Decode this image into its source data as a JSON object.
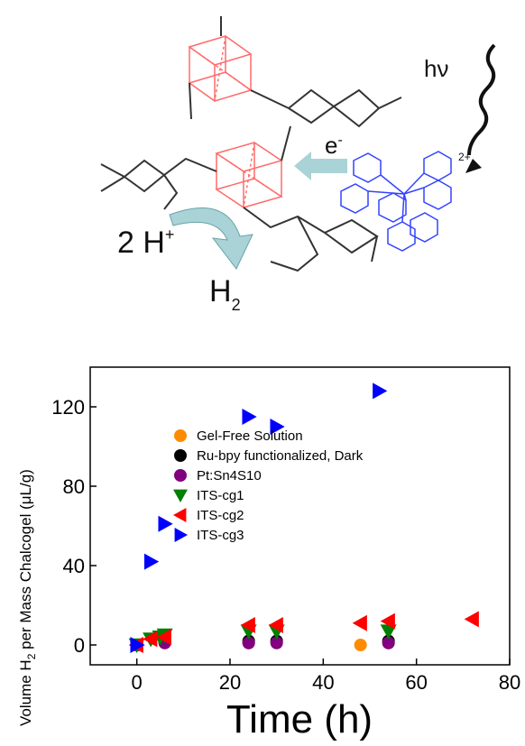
{
  "scheme": {
    "label_hv": "hν",
    "label_electron": "e",
    "label_electron_sup": "-",
    "label_protons": "2 H",
    "label_protons_sup": "+",
    "label_h2": "H",
    "label_h2_sub": "2",
    "label_charge": "2+",
    "colors": {
      "cluster": "#ff6b6b",
      "linker": "#333333",
      "ru": "#3344ff",
      "arrow": "#a9d3d6"
    }
  },
  "chart_data": {
    "type": "scatter",
    "xlabel": "Time (h)",
    "ylabel": "Volume H₂ per Mass Chalcogel (μL/g)",
    "ylabel_main": "Volume H",
    "ylabel_sub": "2",
    "ylabel_rest": " per Mass Chalcogel (μL/g)",
    "xlim": [
      -10,
      80
    ],
    "ylim": [
      -10,
      140
    ],
    "xticks": [
      0,
      20,
      40,
      60,
      80
    ],
    "yticks": [
      0,
      40,
      80,
      120
    ],
    "legend_position": "center",
    "series": [
      {
        "name": "Gel-Free Solution",
        "marker": "circle",
        "color": "#ff8c00",
        "x": [
          0,
          6,
          24,
          48,
          54
        ],
        "y": [
          0,
          1,
          1,
          0,
          1
        ]
      },
      {
        "name": "Ru-bpy functionalized, Dark",
        "marker": "circle",
        "color": "#000000",
        "x": [
          0,
          6,
          24,
          30,
          54
        ],
        "y": [
          0,
          2,
          2,
          2,
          2
        ]
      },
      {
        "name": "Pt:Sn4S10",
        "marker": "circle",
        "color": "#800080",
        "x": [
          0,
          6,
          24,
          30,
          54
        ],
        "y": [
          0,
          1,
          1,
          1,
          1
        ]
      },
      {
        "name": "ITS-cg1",
        "marker": "triangle-down",
        "color": "#007f00",
        "x": [
          0,
          3,
          5,
          6,
          24,
          30,
          54
        ],
        "y": [
          0,
          3,
          4,
          5,
          7,
          7,
          7
        ]
      },
      {
        "name": "ITS-cg2",
        "marker": "triangle-left",
        "color": "#ff0000",
        "x": [
          0,
          3,
          6,
          24,
          30,
          48,
          54,
          72
        ],
        "y": [
          0,
          3,
          4,
          10,
          10,
          11,
          12,
          13
        ]
      },
      {
        "name": "ITS-cg3",
        "marker": "triangle-right",
        "color": "#0000ff",
        "x": [
          0,
          3,
          6,
          24,
          30,
          52
        ],
        "y": [
          0,
          42,
          61,
          115,
          110,
          128
        ]
      }
    ]
  }
}
